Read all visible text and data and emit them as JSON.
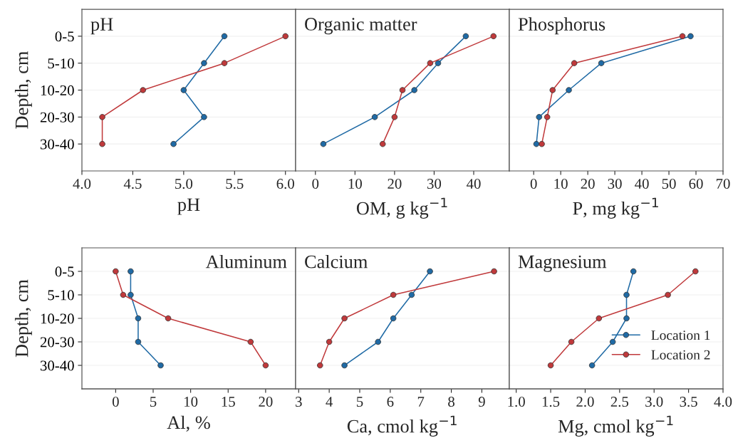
{
  "chart_data": [
    {
      "type": "line",
      "orientation": "horizontal",
      "title": "pH",
      "xlabel": "pH",
      "ylabel": "Depth, cm",
      "categories": [
        "0-5",
        "5-10",
        "10-20",
        "20-30",
        "30-40"
      ],
      "xlim": [
        4.0,
        6.1
      ],
      "xticks": [
        {
          "value": 4.0,
          "label": "4.0"
        },
        {
          "value": 4.5,
          "label": "4.5"
        },
        {
          "value": 5.0,
          "label": "5.0"
        },
        {
          "value": 5.5,
          "label": "5.5"
        },
        {
          "value": 6.0,
          "label": "6.0"
        }
      ],
      "grid": "y",
      "marker": "circle",
      "line_style": "solid",
      "series": [
        {
          "color": "#1f6aa5",
          "values": [
            5.4,
            5.2,
            5.0,
            5.2,
            4.9
          ]
        },
        {
          "color": "#c0393b",
          "values": [
            6.0,
            5.4,
            4.6,
            4.2,
            4.2
          ]
        }
      ]
    },
    {
      "type": "line",
      "orientation": "horizontal",
      "title": "Organic matter",
      "xlabel": "OM, g kg$^{−1}$",
      "categories": [
        null,
        null,
        null,
        null,
        null
      ],
      "xlim": [
        -5,
        49
      ],
      "xticks": [
        0,
        10,
        20,
        30,
        40
      ],
      "tick_labels": "x",
      "grid": "y",
      "marker": "circle",
      "line_style": "solid",
      "series": [
        {
          "color": "#1f6aa5",
          "values": [
            38,
            31,
            25,
            15,
            2
          ]
        },
        {
          "color": "#c0393b",
          "values": [
            45,
            29,
            22,
            20,
            17
          ]
        }
      ]
    },
    {
      "type": "line",
      "orientation": "horizontal",
      "title": "Phosphorus",
      "xlabel": "P, mg kg$^{−1}$",
      "categories": [
        null,
        null,
        null,
        null,
        null
      ],
      "xlim": [
        -9,
        70
      ],
      "xticks": [
        0,
        10,
        20,
        30,
        40,
        50,
        60,
        70
      ],
      "tick_labels": "x",
      "grid": "y",
      "marker": "circle",
      "line_style": "solid",
      "series": [
        {
          "color": "#1f6aa5",
          "values": [
            58,
            25,
            13,
            2,
            1
          ]
        },
        {
          "color": "#c0393b",
          "values": [
            55,
            15,
            7,
            5,
            3
          ]
        }
      ]
    },
    {
      "type": "line",
      "orientation": "horizontal",
      "title": "Aluminum",
      "xlabel": "Al, %",
      "ylabel": "Depth, cm",
      "categories": [
        "0-5",
        "5-10",
        "10-20",
        "20-30",
        "30-40"
      ],
      "xlim": [
        -4.5,
        24
      ],
      "xticks": [
        0,
        5,
        10,
        15,
        20
      ],
      "grid": "y",
      "marker": "circle",
      "line_style": "solid",
      "series": [
        {
          "color": "#1f6aa5",
          "values": [
            2,
            2,
            3,
            3,
            6
          ]
        },
        {
          "color": "#c0393b",
          "values": [
            0,
            1,
            7,
            18,
            20
          ]
        }
      ]
    },
    {
      "type": "line",
      "orientation": "horizontal",
      "title": "Calcium",
      "xlabel": "Ca, cmol kg$^{−1}$",
      "categories": [
        null,
        null,
        null,
        null,
        null
      ],
      "xlim": [
        2.9,
        9.9
      ],
      "xticks": [
        3,
        4,
        5,
        6,
        7,
        8,
        9
      ],
      "tick_labels": "x",
      "grid": "y",
      "marker": "circle",
      "line_style": "solid",
      "series": [
        {
          "color": "#1f6aa5",
          "values": [
            7.3,
            6.7,
            6.1,
            5.6,
            4.5
          ]
        },
        {
          "color": "#c0393b",
          "values": [
            9.4,
            6.1,
            4.5,
            4.0,
            3.7
          ]
        }
      ]
    },
    {
      "type": "line",
      "orientation": "horizontal",
      "title": "Magnesium",
      "xlabel": "Mg, cmol kg$^{−1}$",
      "categories": [
        null,
        null,
        null,
        null,
        null
      ],
      "xlim": [
        0.9,
        4.0
      ],
      "xticks": [
        {
          "value": 1.0,
          "label": "1.0"
        },
        {
          "value": 1.5,
          "label": "1.5"
        },
        {
          "value": 2.0,
          "label": "2.0"
        },
        {
          "value": 2.5,
          "label": "2.5"
        },
        {
          "value": 3.0,
          "label": "3.0"
        },
        {
          "value": 3.5,
          "label": "3.5"
        },
        {
          "value": 4.0,
          "label": "4.0"
        }
      ],
      "tick_labels": "x",
      "grid": "y",
      "marker": "circle",
      "line_style": "solid",
      "legend": "bottom right",
      "series": [
        {
          "name": "Location 1",
          "color": "#1f6aa5",
          "values": [
            2.7,
            2.6,
            2.6,
            2.4,
            2.1
          ]
        },
        {
          "name": "Location 2",
          "color": "#c0393b",
          "values": [
            3.6,
            3.2,
            2.2,
            1.8,
            1.5
          ]
        }
      ]
    }
  ]
}
